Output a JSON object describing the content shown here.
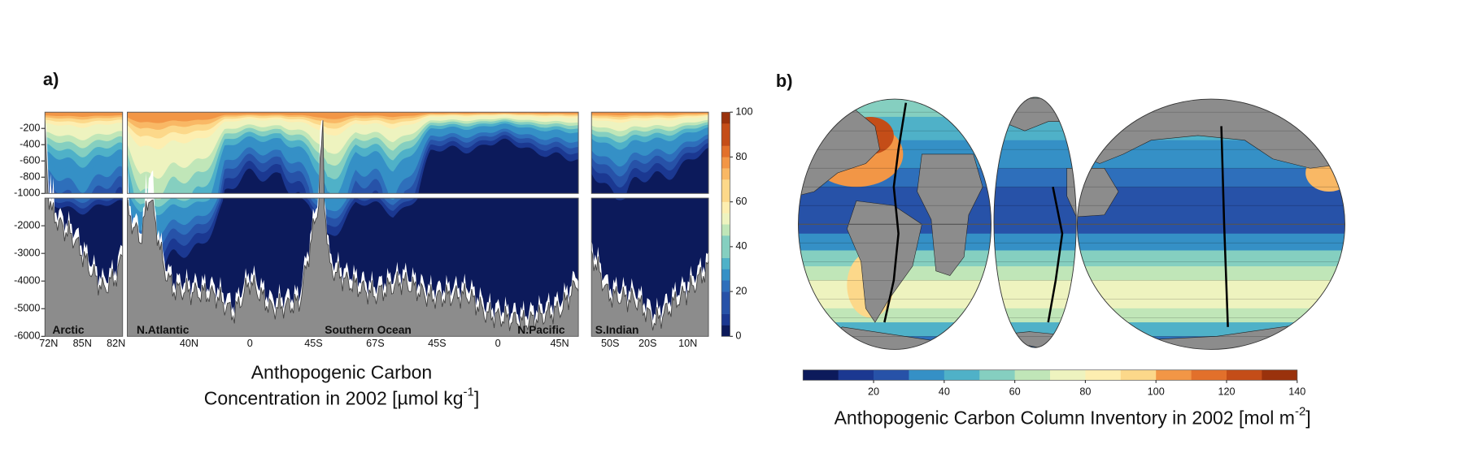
{
  "chart_data": [
    {
      "type": "section",
      "label": "a)",
      "title": "Anthopogenic Carbon",
      "subtitle": "Concentration in 2002 [µmol kg",
      "subtitle_superscript": "-1",
      "subtitle_end": "]",
      "ylim": [
        0,
        -6000
      ],
      "ybreak": -1000,
      "yticks": [
        -200,
        -400,
        -600,
        -800,
        -1000,
        -2000,
        -3000,
        -4000,
        -5000,
        -6000
      ],
      "xtick_labels": [
        "72N",
        "85N",
        "82N",
        "40N",
        "0",
        "45S",
        "67S",
        "45S",
        "0",
        "45N",
        "50S",
        "20S",
        "10N"
      ],
      "regions": [
        "Arctic",
        "N.Atlantic",
        "Southern Ocean",
        "N.Pacific",
        "S.Indian"
      ],
      "colorbar": {
        "lim": [
          0,
          100
        ],
        "ticks": [
          0,
          20,
          40,
          60,
          80,
          100
        ]
      }
    },
    {
      "type": "map",
      "label": "b)",
      "title": "Anthopogenic Carbon Column Inventory in 2002  [mol m",
      "title_superscript": "-2",
      "title_end": "]",
      "colorbar": {
        "lim": [
          0,
          140
        ],
        "ticks": [
          20,
          40,
          60,
          80,
          100,
          120,
          140
        ]
      }
    }
  ]
}
